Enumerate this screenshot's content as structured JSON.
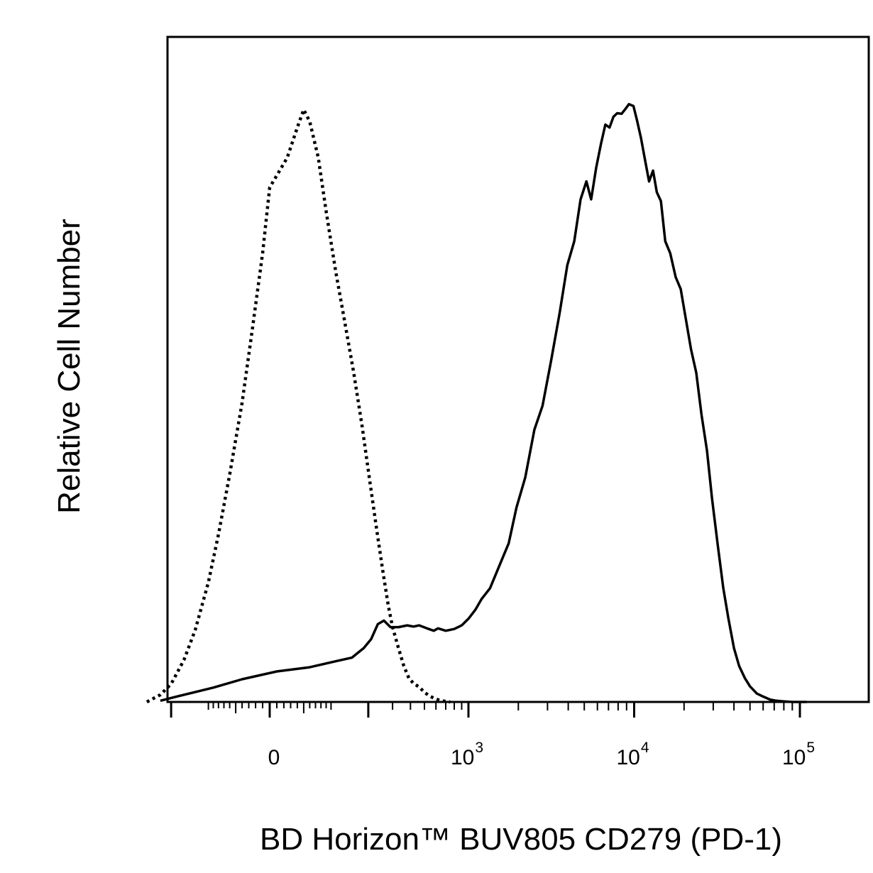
{
  "chart_data": {
    "type": "line",
    "subtype": "flow-cytometry-histogram",
    "xlabel": "BD Horizon™ BUV805 CD279 (PD-1)",
    "ylabel": "Relative Cell Number",
    "x_scale": "biexponential",
    "xlim": [
      -300,
      150000
    ],
    "ylim": [
      0,
      100
    ],
    "grid": false,
    "legend": "none",
    "x_ticks": [
      {
        "value": 0,
        "base": "0",
        "exp": ""
      },
      {
        "value": 1000,
        "base": "10",
        "exp": "3"
      },
      {
        "value": 10000,
        "base": "10",
        "exp": "4"
      },
      {
        "value": 100000,
        "base": "10",
        "exp": "5"
      }
    ],
    "series": [
      {
        "style": "dotted",
        "color": "#000000",
        "points": [
          [
            -300,
            0
          ],
          [
            -240,
            1.2
          ],
          [
            -200,
            3
          ],
          [
            -160,
            7
          ],
          [
            -130,
            12
          ],
          [
            -100,
            20
          ],
          [
            -80,
            28
          ],
          [
            -60,
            38
          ],
          [
            -40,
            50
          ],
          [
            -25,
            62
          ],
          [
            -10,
            75
          ],
          [
            0,
            86
          ],
          [
            10,
            88
          ],
          [
            25,
            91
          ],
          [
            40,
            96
          ],
          [
            50,
            99
          ],
          [
            60,
            97
          ],
          [
            75,
            91
          ],
          [
            90,
            82
          ],
          [
            110,
            72
          ],
          [
            130,
            64
          ],
          [
            155,
            55
          ],
          [
            180,
            46
          ],
          [
            205,
            37
          ],
          [
            230,
            29
          ],
          [
            255,
            22
          ],
          [
            280,
            16
          ],
          [
            300,
            12.5
          ],
          [
            330,
            9
          ],
          [
            360,
            6
          ],
          [
            390,
            4
          ],
          [
            420,
            3.1
          ],
          [
            460,
            2.5
          ],
          [
            500,
            1.6
          ],
          [
            550,
            0.9
          ],
          [
            600,
            0.5
          ],
          [
            650,
            0.2
          ],
          [
            750,
            0
          ]
        ]
      },
      {
        "style": "solid",
        "color": "#000000",
        "points": [
          [
            -240,
            0.2
          ],
          [
            -190,
            0.8
          ],
          [
            -140,
            1.5
          ],
          [
            -90,
            2.4
          ],
          [
            -40,
            3.8
          ],
          [
            10,
            5.1
          ],
          [
            60,
            5.8
          ],
          [
            110,
            6.8
          ],
          [
            150,
            7.4
          ],
          [
            185,
            9
          ],
          [
            210,
            10.5
          ],
          [
            235,
            13
          ],
          [
            260,
            13.6
          ],
          [
            290,
            12.5
          ],
          [
            330,
            12.5
          ],
          [
            380,
            12.8
          ],
          [
            420,
            12.6
          ],
          [
            460,
            12.8
          ],
          [
            520,
            12.3
          ],
          [
            580,
            11.9
          ],
          [
            620,
            12.3
          ],
          [
            700,
            11.9
          ],
          [
            800,
            12.2
          ],
          [
            900,
            12.8
          ],
          [
            1000,
            13.9
          ],
          [
            1100,
            15.4
          ],
          [
            1200,
            17.2
          ],
          [
            1350,
            19
          ],
          [
            1550,
            23
          ],
          [
            1750,
            26.5
          ],
          [
            1950,
            32.5
          ],
          [
            2200,
            37.5
          ],
          [
            2500,
            45.5
          ],
          [
            2800,
            49.5
          ],
          [
            3150,
            57
          ],
          [
            3550,
            65
          ],
          [
            3950,
            73
          ],
          [
            4350,
            77
          ],
          [
            4750,
            84
          ],
          [
            5150,
            87
          ],
          [
            5500,
            84
          ],
          [
            5900,
            89.3
          ],
          [
            6300,
            93.2
          ],
          [
            6700,
            96.5
          ],
          [
            7100,
            96
          ],
          [
            7500,
            97.8
          ],
          [
            7900,
            98.4
          ],
          [
            8400,
            98.3
          ],
          [
            8800,
            99
          ],
          [
            9300,
            99.9
          ],
          [
            9900,
            99.6
          ],
          [
            10400,
            97.2
          ],
          [
            11000,
            94.2
          ],
          [
            11700,
            90.2
          ],
          [
            12300,
            87
          ],
          [
            13000,
            88.8
          ],
          [
            13700,
            85.2
          ],
          [
            14500,
            83.7
          ],
          [
            15400,
            77
          ],
          [
            16500,
            75
          ],
          [
            17800,
            71
          ],
          [
            19100,
            69
          ],
          [
            20500,
            64
          ],
          [
            22000,
            59
          ],
          [
            23700,
            55
          ],
          [
            25500,
            48
          ],
          [
            27500,
            42
          ],
          [
            29500,
            34
          ],
          [
            32000,
            26
          ],
          [
            34500,
            19
          ],
          [
            37000,
            14
          ],
          [
            40000,
            9
          ],
          [
            43000,
            6
          ],
          [
            46500,
            4
          ],
          [
            50000,
            2.6
          ],
          [
            55000,
            1.4
          ],
          [
            60000,
            0.9
          ],
          [
            66000,
            0.4
          ],
          [
            72000,
            0.2
          ],
          [
            80000,
            0.1
          ],
          [
            90000,
            0
          ],
          [
            110000,
            0
          ]
        ]
      }
    ]
  }
}
